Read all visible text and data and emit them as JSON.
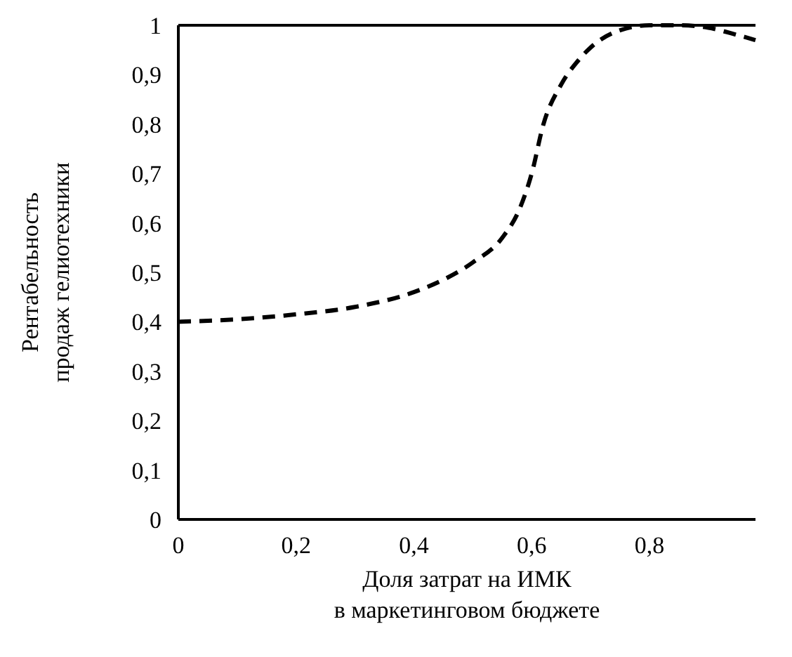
{
  "chart_data": {
    "type": "line",
    "xlabel": "Доля затрат на ИМК\nв маркетинговом бюджете",
    "ylabel": "Рентабельность\nпродаж гелиотехники",
    "x": [
      0,
      0.1,
      0.2,
      0.3,
      0.4,
      0.45,
      0.5,
      0.55,
      0.58,
      0.6,
      0.62,
      0.65,
      0.68,
      0.7,
      0.75,
      0.8,
      0.85,
      0.9,
      0.95,
      0.98
    ],
    "series": [
      {
        "color": "#000000",
        "values": [
          0.4,
          0.405,
          0.415,
          0.43,
          0.46,
          0.485,
          0.52,
          0.57,
          0.63,
          0.7,
          0.8,
          0.88,
          0.93,
          0.955,
          0.99,
          1.0,
          1.0,
          0.995,
          0.98,
          0.97
        ]
      }
    ],
    "xlim": [
      0,
      0.98
    ],
    "ylim": [
      0,
      1
    ],
    "xticks": [
      0,
      {
        "value": 0.2,
        "label": "0,2"
      },
      {
        "value": 0.4,
        "label": "0,4"
      },
      {
        "value": 0.6,
        "label": "0,6"
      },
      {
        "value": 0.8,
        "label": "0,8"
      }
    ],
    "yticks": [
      0,
      {
        "value": 0.1,
        "label": "0,1"
      },
      {
        "value": 0.2,
        "label": "0,2"
      },
      {
        "value": 0.3,
        "label": "0,3"
      },
      {
        "value": 0.4,
        "label": "0,4"
      },
      {
        "value": 0.5,
        "label": "0,5"
      },
      {
        "value": 0.6,
        "label": "0,6"
      },
      {
        "value": 0.7,
        "label": "0,7"
      },
      {
        "value": 0.8,
        "label": "0,8"
      },
      {
        "value": 0.9,
        "label": "0,9"
      },
      1
    ],
    "line_style": "dashed",
    "marker": "none",
    "grid": false
  }
}
